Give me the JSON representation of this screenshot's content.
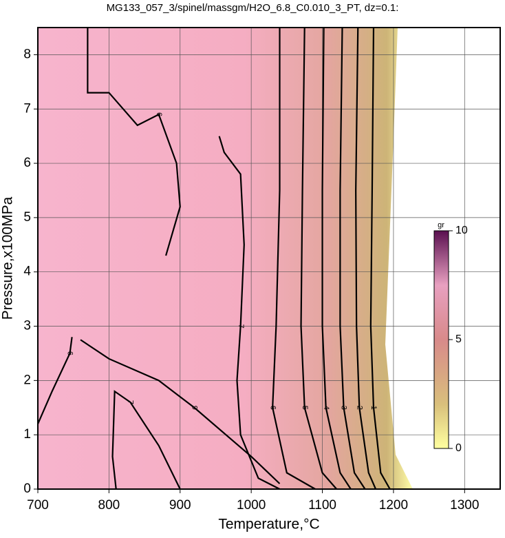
{
  "chart_data": {
    "type": "contour",
    "title": "MG133_057_3/spinel/massgm/H2O_6.8_C0.010_3_PT, dz=0.1:",
    "xlabel": "Temperature,°C",
    "ylabel": "Pressure,x100MPa",
    "xlim": [
      700,
      1350
    ],
    "ylim": [
      0,
      8.5
    ],
    "xticks": [
      700,
      800,
      900,
      1000,
      1100,
      1200,
      1300
    ],
    "yticks": [
      0,
      1,
      2,
      3,
      4,
      5,
      6,
      7,
      8
    ],
    "grid": true,
    "colorbar": {
      "label": "gr",
      "lim": [
        0,
        10
      ],
      "ticks": [
        0,
        5,
        10
      ]
    },
    "contours": [
      {
        "level": 1,
        "x": [
          1172,
          1170,
          1168,
          1172,
          1182,
          1195
        ],
        "y": [
          8.5,
          5.5,
          3,
          1.5,
          0.3,
          0
        ]
      },
      {
        "level": 2,
        "x": [
          1150,
          1147,
          1148,
          1152,
          1165,
          1175
        ],
        "y": [
          8.5,
          5.5,
          3,
          1.5,
          0.3,
          0
        ]
      },
      {
        "level": 3,
        "x": [
          1128,
          1125,
          1125,
          1130,
          1145,
          1160
        ],
        "y": [
          8.5,
          5.5,
          3,
          1.5,
          0.3,
          0
        ]
      },
      {
        "level": 4,
        "x": [
          1102,
          1100,
          1100,
          1105,
          1125,
          1140
        ],
        "y": [
          8.5,
          5.5,
          3,
          1.5,
          0.3,
          0
        ]
      },
      {
        "level": 5,
        "x": [
          1075,
          1072,
          1070,
          1075,
          1100,
          1120
        ],
        "y": [
          8.5,
          5.5,
          3,
          1.5,
          0.3,
          0
        ]
      },
      {
        "level": 6,
        "x": [
          1040,
          1040,
          1035,
          1030,
          1050,
          1090
        ],
        "y": [
          8.5,
          5.5,
          3,
          1.5,
          0.3,
          0
        ]
      },
      {
        "level": 7,
        "x": [
          955,
          962,
          985,
          990,
          985,
          980,
          985,
          1010,
          1040
        ],
        "y": [
          6.5,
          6.2,
          5.8,
          4.5,
          3,
          2,
          1,
          0.2,
          0
        ]
      },
      {
        "level": 6,
        "x": [
          770,
          770,
          800,
          840,
          870,
          895,
          900,
          880
        ],
        "y": [
          8.5,
          7.3,
          7.3,
          6.7,
          6.9,
          6.0,
          5.2,
          4.3
        ]
      },
      {
        "level": 9,
        "x": [
          760,
          800,
          870,
          920,
          1000,
          1040
        ],
        "y": [
          2.75,
          2.4,
          2.0,
          1.5,
          0.6,
          0.1
        ]
      },
      {
        "level": 6,
        "x": [
          700,
          720,
          745,
          748
        ],
        "y": [
          1.2,
          1.8,
          2.5,
          2.8
        ]
      },
      {
        "level": 7,
        "x": [
          810,
          805,
          808,
          830,
          870,
          900
        ],
        "y": [
          0,
          0.6,
          1.8,
          1.6,
          0.8,
          0
        ]
      }
    ]
  }
}
